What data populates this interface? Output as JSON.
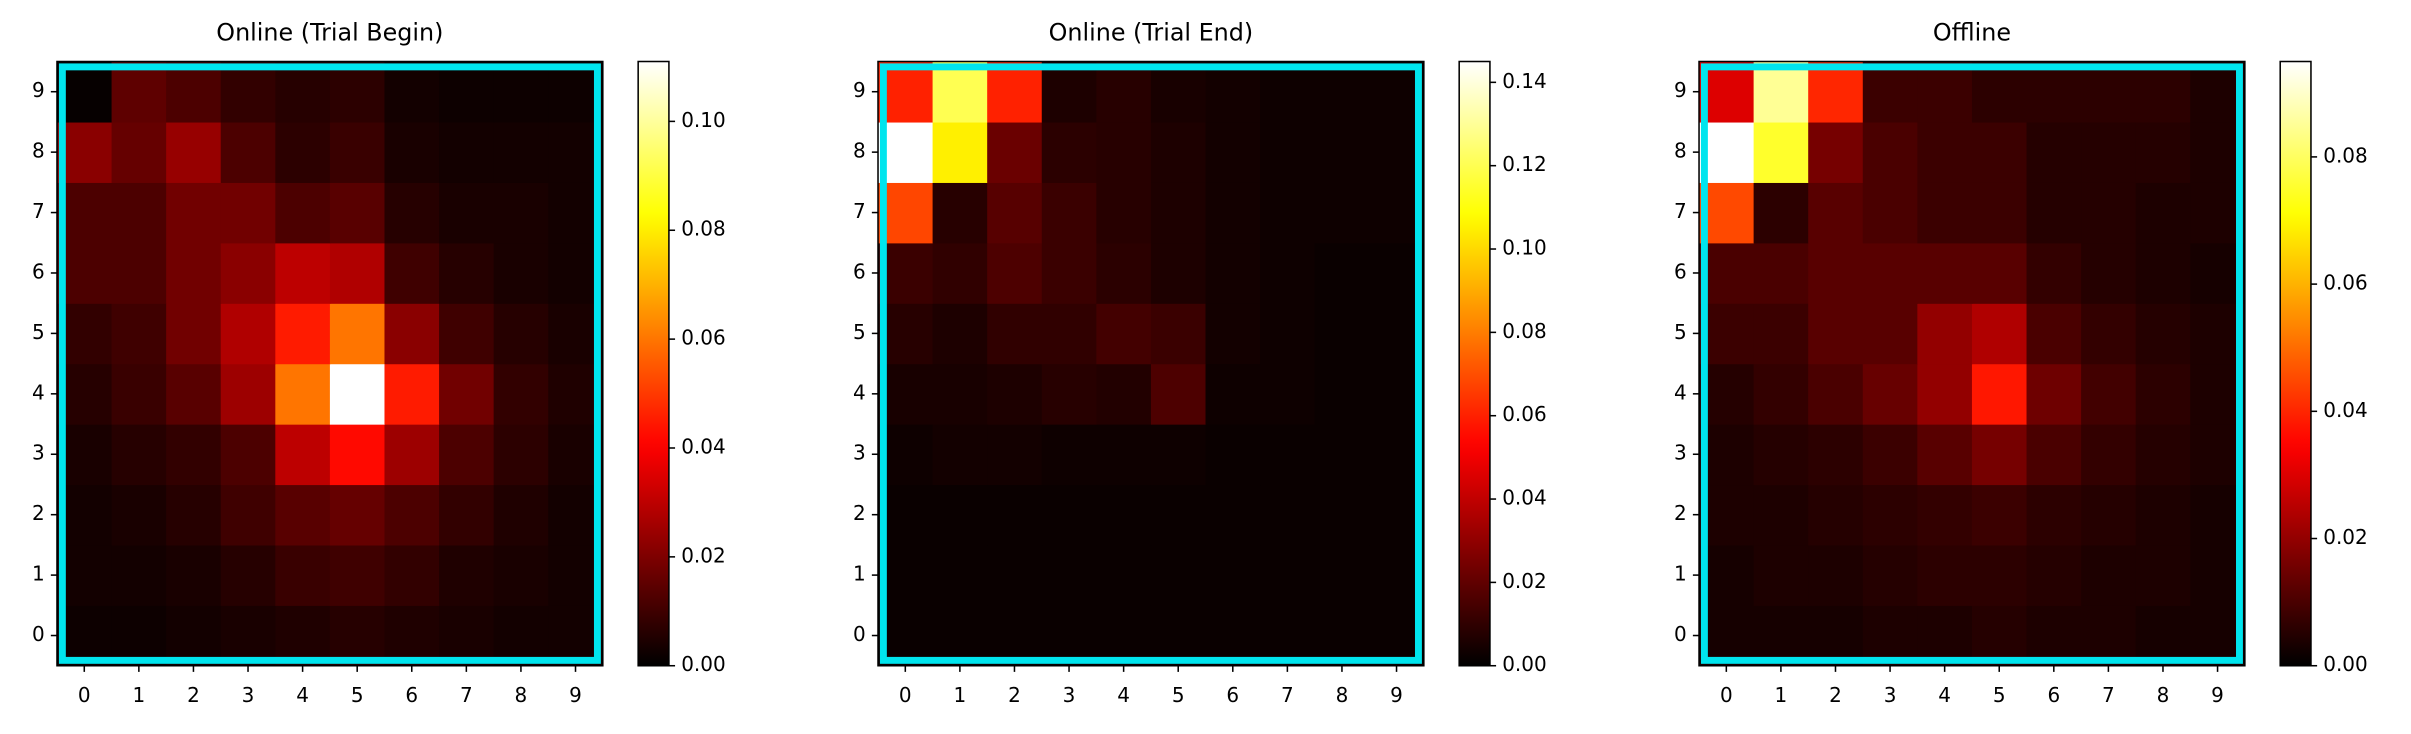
{
  "chart_data": [
    {
      "type": "heatmap",
      "title": "Online (Trial Begin)",
      "colormap": "hot",
      "border_color": "#00e5ee",
      "x": [
        0,
        1,
        2,
        3,
        4,
        5,
        6,
        7,
        8,
        9
      ],
      "y": [
        0,
        1,
        2,
        3,
        4,
        5,
        6,
        7,
        8,
        9
      ],
      "z": [
        [
          0.002,
          0.002,
          0.003,
          0.004,
          0.005,
          0.006,
          0.005,
          0.004,
          0.003,
          0.003
        ],
        [
          0.003,
          0.003,
          0.004,
          0.006,
          0.009,
          0.01,
          0.008,
          0.005,
          0.004,
          0.003
        ],
        [
          0.003,
          0.004,
          0.006,
          0.01,
          0.014,
          0.016,
          0.012,
          0.008,
          0.005,
          0.003
        ],
        [
          0.004,
          0.006,
          0.008,
          0.012,
          0.03,
          0.042,
          0.025,
          0.012,
          0.007,
          0.004
        ],
        [
          0.006,
          0.009,
          0.014,
          0.025,
          0.06,
          0.111,
          0.045,
          0.018,
          0.008,
          0.005
        ],
        [
          0.008,
          0.01,
          0.018,
          0.028,
          0.045,
          0.06,
          0.022,
          0.01,
          0.006,
          0.004
        ],
        [
          0.012,
          0.012,
          0.018,
          0.022,
          0.03,
          0.028,
          0.01,
          0.006,
          0.004,
          0.003
        ],
        [
          0.012,
          0.012,
          0.018,
          0.018,
          0.012,
          0.014,
          0.006,
          0.004,
          0.004,
          0.003
        ],
        [
          0.022,
          0.016,
          0.024,
          0.012,
          0.007,
          0.009,
          0.004,
          0.003,
          0.003,
          0.003
        ],
        [
          0.001,
          0.015,
          0.012,
          0.008,
          0.006,
          0.007,
          0.003,
          0.002,
          0.002,
          0.002
        ]
      ],
      "clim": [
        0,
        0.111
      ],
      "cticks": [
        {
          "value": 0,
          "label": "0.00"
        },
        {
          "value": 0.02,
          "label": "0.02"
        },
        {
          "value": 0.04,
          "label": "0.04"
        },
        {
          "value": 0.06,
          "label": "0.06"
        },
        {
          "value": 0.08,
          "label": "0.08"
        },
        {
          "value": 0.1,
          "label": "0.10"
        }
      ]
    },
    {
      "type": "heatmap",
      "title": "Online (Trial End)",
      "colormap": "hot",
      "border_color": "#00e5ee",
      "x": [
        0,
        1,
        2,
        3,
        4,
        5,
        6,
        7,
        8,
        9
      ],
      "y": [
        0,
        1,
        2,
        3,
        4,
        5,
        6,
        7,
        8,
        9
      ],
      "z": [
        [
          0.002,
          0.002,
          0.002,
          0.002,
          0.002,
          0.002,
          0.002,
          0.002,
          0.002,
          0.002
        ],
        [
          0.002,
          0.002,
          0.002,
          0.002,
          0.002,
          0.002,
          0.002,
          0.002,
          0.002,
          0.002
        ],
        [
          0.002,
          0.002,
          0.002,
          0.002,
          0.002,
          0.002,
          0.002,
          0.002,
          0.002,
          0.002
        ],
        [
          0.003,
          0.004,
          0.004,
          0.003,
          0.003,
          0.003,
          0.002,
          0.002,
          0.002,
          0.002
        ],
        [
          0.005,
          0.005,
          0.006,
          0.008,
          0.007,
          0.016,
          0.003,
          0.003,
          0.002,
          0.002
        ],
        [
          0.008,
          0.006,
          0.01,
          0.01,
          0.014,
          0.012,
          0.004,
          0.003,
          0.002,
          0.002
        ],
        [
          0.012,
          0.01,
          0.016,
          0.012,
          0.009,
          0.006,
          0.004,
          0.003,
          0.002,
          0.002
        ],
        [
          0.068,
          0.008,
          0.018,
          0.012,
          0.008,
          0.006,
          0.004,
          0.003,
          0.003,
          0.003
        ],
        [
          0.145,
          0.105,
          0.022,
          0.009,
          0.008,
          0.006,
          0.004,
          0.003,
          0.003,
          0.003
        ],
        [
          0.06,
          0.12,
          0.06,
          0.006,
          0.008,
          0.005,
          0.004,
          0.003,
          0.003,
          0.003
        ]
      ],
      "clim": [
        0,
        0.145
      ],
      "cticks": [
        {
          "value": 0,
          "label": "0.00"
        },
        {
          "value": 0.02,
          "label": "0.02"
        },
        {
          "value": 0.04,
          "label": "0.04"
        },
        {
          "value": 0.06,
          "label": "0.06"
        },
        {
          "value": 0.08,
          "label": "0.08"
        },
        {
          "value": 0.1,
          "label": "0.10"
        },
        {
          "value": 0.12,
          "label": "0.12"
        },
        {
          "value": 0.14,
          "label": "0.14"
        }
      ]
    },
    {
      "type": "heatmap",
      "title": "Offline",
      "colormap": "hot",
      "border_color": "#00e5ee",
      "x": [
        0,
        1,
        2,
        3,
        4,
        5,
        6,
        7,
        8,
        9
      ],
      "y": [
        0,
        1,
        2,
        3,
        4,
        5,
        6,
        7,
        8,
        9
      ],
      "z": [
        [
          0.003,
          0.003,
          0.003,
          0.004,
          0.004,
          0.005,
          0.004,
          0.004,
          0.003,
          0.003
        ],
        [
          0.003,
          0.004,
          0.004,
          0.005,
          0.006,
          0.006,
          0.005,
          0.004,
          0.004,
          0.003
        ],
        [
          0.004,
          0.004,
          0.005,
          0.006,
          0.007,
          0.008,
          0.006,
          0.005,
          0.004,
          0.003
        ],
        [
          0.004,
          0.005,
          0.006,
          0.008,
          0.012,
          0.016,
          0.01,
          0.007,
          0.005,
          0.004
        ],
        [
          0.005,
          0.007,
          0.01,
          0.014,
          0.02,
          0.038,
          0.015,
          0.009,
          0.006,
          0.004
        ],
        [
          0.008,
          0.008,
          0.012,
          0.012,
          0.02,
          0.024,
          0.01,
          0.007,
          0.005,
          0.004
        ],
        [
          0.01,
          0.01,
          0.012,
          0.012,
          0.012,
          0.012,
          0.007,
          0.005,
          0.004,
          0.003
        ],
        [
          0.045,
          0.006,
          0.012,
          0.01,
          0.008,
          0.008,
          0.005,
          0.005,
          0.004,
          0.004
        ],
        [
          0.095,
          0.075,
          0.016,
          0.01,
          0.008,
          0.008,
          0.005,
          0.005,
          0.005,
          0.004
        ],
        [
          0.03,
          0.085,
          0.04,
          0.008,
          0.008,
          0.006,
          0.006,
          0.006,
          0.006,
          0.004
        ]
      ],
      "clim": [
        0,
        0.095
      ],
      "cticks": [
        {
          "value": 0,
          "label": "0.00"
        },
        {
          "value": 0.02,
          "label": "0.02"
        },
        {
          "value": 0.04,
          "label": "0.04"
        },
        {
          "value": 0.06,
          "label": "0.06"
        },
        {
          "value": 0.08,
          "label": "0.08"
        }
      ]
    }
  ]
}
